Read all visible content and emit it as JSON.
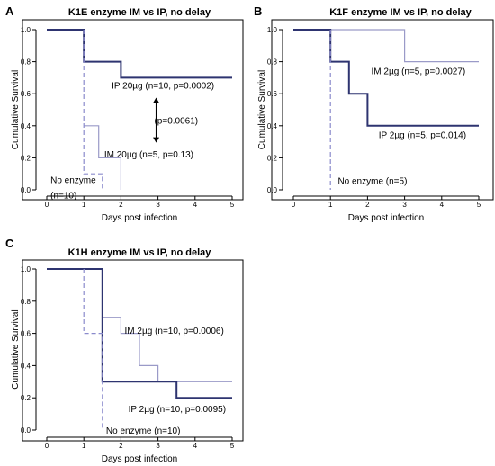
{
  "chart_data": [
    {
      "type": "line",
      "panel_label": "A",
      "title": "K1E enzyme IM vs IP, no delay",
      "xlabel": "Days post infection",
      "ylabel": "Cumulative Survival",
      "xlim": [
        0,
        5
      ],
      "ylim": [
        0,
        1
      ],
      "xticks": [
        "0",
        "1",
        "2",
        "3",
        "4",
        "5"
      ],
      "yticks": [
        "0.0",
        "0.2",
        "0.4",
        "0.6",
        "0.8",
        "1.0"
      ],
      "series": [
        {
          "style": "solid-thick",
          "color": "#2e3470",
          "points": [
            [
              0,
              1.0
            ],
            [
              1,
              1.0
            ],
            [
              1,
              0.8
            ],
            [
              2,
              0.8
            ],
            [
              2,
              0.7
            ],
            [
              5,
              0.7
            ]
          ]
        },
        {
          "style": "solid-thin",
          "color": "#9a9ac8",
          "points": [
            [
              1,
              0.4
            ],
            [
              1.4,
              0.4
            ],
            [
              1.4,
              0.2
            ],
            [
              2,
              0.2
            ],
            [
              2,
              0.0
            ]
          ]
        },
        {
          "style": "dashed",
          "color": "#8a8acc",
          "points": [
            [
              1,
              1.0
            ],
            [
              1,
              0.1
            ],
            [
              1.5,
              0.1
            ],
            [
              1.5,
              0.0
            ]
          ]
        }
      ],
      "annotations": [
        {
          "text": "IP 20µg (n=10, p=0.0002)",
          "x": 1.75,
          "y": 0.655
        },
        {
          "text": "IM 20µg (n=5, p=0.13)",
          "x": 1.55,
          "y": 0.225
        },
        {
          "text": "No enzyme",
          "x": 0.1,
          "y": 0.065
        },
        {
          "text": "(n=10)",
          "x": 0.1,
          "y": -0.03
        },
        {
          "text": "(p=0.0061)",
          "x": 2.9,
          "y": 0.435
        }
      ],
      "arrow": {
        "x": 2.95,
        "y_from": 0.57,
        "y_to": 0.3
      }
    },
    {
      "type": "line",
      "panel_label": "B",
      "title": "K1F enzyme IM vs IP, no delay",
      "xlabel": "Days post infection",
      "ylabel": "Cumulative Survival",
      "xlim": [
        0,
        5
      ],
      "ylim": [
        0,
        1
      ],
      "xticks": [
        "0",
        "1",
        "2",
        "3",
        "4",
        "5"
      ],
      "yticks": [
        "0.0",
        "0.2",
        "0.4",
        "0.6",
        "0.8",
        "1.0"
      ],
      "series": [
        {
          "style": "solid-thin",
          "color": "#9a9ac8",
          "points": [
            [
              0,
              1.0
            ],
            [
              3,
              1.0
            ],
            [
              3,
              0.8
            ],
            [
              5,
              0.8
            ]
          ]
        },
        {
          "style": "solid-thick",
          "color": "#2e3470",
          "points": [
            [
              0,
              1.0
            ],
            [
              1,
              1.0
            ],
            [
              1,
              0.8
            ],
            [
              1.5,
              0.8
            ],
            [
              1.5,
              0.6
            ],
            [
              2,
              0.6
            ],
            [
              2,
              0.4
            ],
            [
              5,
              0.4
            ]
          ]
        },
        {
          "style": "dashed",
          "color": "#8a8acc",
          "points": [
            [
              1,
              1.0
            ],
            [
              1,
              0.0
            ]
          ]
        }
      ],
      "annotations": [
        {
          "text": "IM 2µg (n=5, p=0.0027)",
          "x": 2.1,
          "y": 0.745
        },
        {
          "text": "IP 2µg (n=5, p=0.014)",
          "x": 2.3,
          "y": 0.345
        },
        {
          "text": "No enzyme (n=5)",
          "x": 1.2,
          "y": 0.06
        }
      ]
    },
    {
      "type": "line",
      "panel_label": "C",
      "title": "K1H enzyme IM vs IP, no delay",
      "xlabel": "Days post infection",
      "ylabel": "Cumulative Survival",
      "xlim": [
        0,
        5
      ],
      "ylim": [
        0,
        1
      ],
      "xticks": [
        "0",
        "1",
        "2",
        "3",
        "4",
        "5"
      ],
      "yticks": [
        "0.0",
        "0.2",
        "0.4",
        "0.6",
        "0.8",
        "1.0"
      ],
      "series": [
        {
          "style": "solid-thin",
          "color": "#9a9ac8",
          "points": [
            [
              0,
              1.0
            ],
            [
              1.5,
              1.0
            ],
            [
              1.5,
              0.7
            ],
            [
              2,
              0.7
            ],
            [
              2,
              0.6
            ],
            [
              2.5,
              0.6
            ],
            [
              2.5,
              0.4
            ],
            [
              3,
              0.4
            ],
            [
              3,
              0.3
            ],
            [
              5,
              0.3
            ]
          ]
        },
        {
          "style": "solid-thick",
          "color": "#2e3470",
          "points": [
            [
              0,
              1.0
            ],
            [
              1.5,
              1.0
            ],
            [
              1.5,
              0.3
            ],
            [
              3.5,
              0.3
            ],
            [
              3.5,
              0.2
            ],
            [
              5,
              0.2
            ]
          ]
        },
        {
          "style": "dashed",
          "color": "#8a8acc",
          "points": [
            [
              1,
              1.0
            ],
            [
              1,
              0.6
            ],
            [
              1.5,
              0.6
            ],
            [
              1.5,
              0.0
            ]
          ]
        }
      ],
      "annotations": [
        {
          "text": "IM 2µg (n=10, p=0.0006)",
          "x": 2.1,
          "y": 0.62
        },
        {
          "text": "IP 2µg (n=10, p=0.0095)",
          "x": 2.2,
          "y": 0.135
        },
        {
          "text": "No enzyme (n=10)",
          "x": 1.6,
          "y": 0.0
        }
      ]
    }
  ]
}
